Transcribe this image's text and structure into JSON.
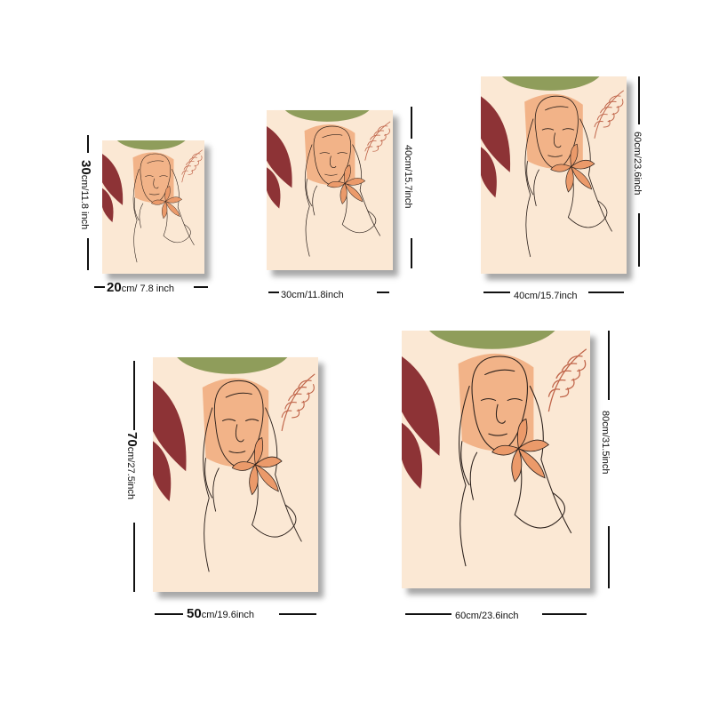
{
  "colors": {
    "background": "#fbe8d4",
    "green": "#8f9d5b",
    "peach": "#f2b388",
    "burgundy": "#8d3336",
    "flower": "#eb9a6a",
    "linework": "#2a1f1a"
  },
  "artwork_subject": "line-art-woman-with-lily",
  "sizes": [
    {
      "id": "size-20x30",
      "width_big": "20",
      "width_small": "cm/ 7.8 inch",
      "height_big": "30",
      "height_small": "cm/11.8 inch"
    },
    {
      "id": "size-30x40",
      "width_big": "",
      "width_small": "30cm/11.8inch",
      "height_big": "",
      "height_small": "40cm/15.7inch"
    },
    {
      "id": "size-40x60",
      "width_big": "",
      "width_small": "40cm/15.7inch",
      "height_big": "",
      "height_small": "60cm/23.6inch"
    },
    {
      "id": "size-50x70",
      "width_big": "50",
      "width_small": "cm/19.6inch",
      "height_big": "70",
      "height_small": "cm/27.5inch"
    },
    {
      "id": "size-60x80",
      "width_big": "",
      "width_small": "60cm/23.6inch",
      "height_big": "",
      "height_small": "80cm/31.5inch"
    }
  ]
}
